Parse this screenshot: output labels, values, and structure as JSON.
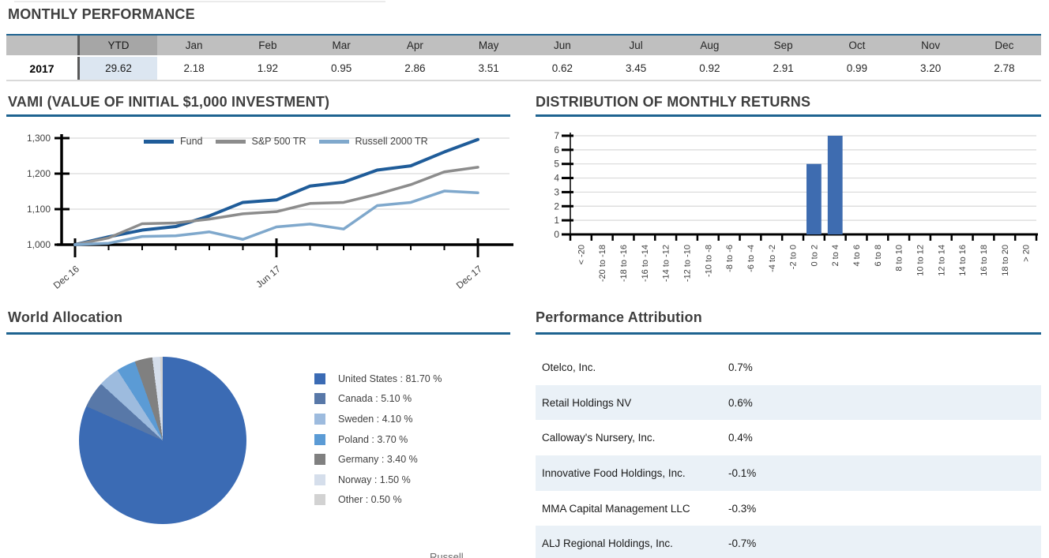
{
  "colors": {
    "accent_line": "#1E6390",
    "table_header_bg": "#BFBFBF",
    "ytd_header_bg": "#A6A6A6",
    "ytd_cell_bg": "#DCE6F1",
    "ytd_separator": "#595959",
    "alt_row_bg": "#EAF1F7",
    "gridline": "#D9D9D9",
    "axis": "#000000",
    "text_dark": "#3F3F3F",
    "text_body": "#1A1A1A"
  },
  "monthly_performance": {
    "title": "MONTHLY PERFORMANCE",
    "row_label": "2017",
    "columns": [
      "Jan",
      "Feb",
      "Mar",
      "Apr",
      "May",
      "Jun",
      "Jul",
      "Aug",
      "Sep",
      "Oct",
      "Nov",
      "Dec"
    ],
    "values": [
      "2.18",
      "1.92",
      "0.95",
      "2.86",
      "3.51",
      "0.62",
      "3.45",
      "0.92",
      "2.91",
      "0.99",
      "3.20",
      "2.78"
    ],
    "ytd_label": "YTD",
    "ytd_value": "29.62"
  },
  "vami": {
    "title": "VAMI (VALUE OF INITIAL $1,000 INVESTMENT)"
  },
  "distribution": {
    "title": "DISTRIBUTION OF MONTHLY RETURNS"
  },
  "world_allocation": {
    "title": "World Allocation"
  },
  "performance_attribution": {
    "title": "Performance Attribution",
    "rows": [
      {
        "name": "Otelco, Inc.",
        "value": "0.7%"
      },
      {
        "name": "Retail Holdings NV",
        "value": "0.6%"
      },
      {
        "name": "Calloway's Nursery, Inc.",
        "value": "0.4%"
      },
      {
        "name": "Innovative Food Holdings, Inc.",
        "value": "-0.1%"
      },
      {
        "name": "MMA Capital Management LLC",
        "value": "-0.3%"
      },
      {
        "name": "ALJ Regional Holdings, Inc.",
        "value": "-0.7%"
      }
    ]
  },
  "footer": {
    "partial_text": "Russell"
  },
  "chart_data": [
    {
      "type": "line",
      "title": "VAMI (VALUE OF INITIAL $1,000 INVESTMENT)",
      "x": [
        "Dec-16",
        "Jan-17",
        "Feb-17",
        "Mar-17",
        "Apr-17",
        "May-17",
        "Jun-17",
        "Jul-17",
        "Aug-17",
        "Sep-17",
        "Oct-17",
        "Nov-17",
        "Dec-17"
      ],
      "x_major": [
        {
          "index": 0,
          "label": "Dec 16"
        },
        {
          "index": 6,
          "label": "Jun 17"
        },
        {
          "index": 12,
          "label": "Dec 17"
        }
      ],
      "ylim": [
        1000,
        1300
      ],
      "yticks": [
        1000,
        1100,
        1200,
        1300
      ],
      "ytick_labels": [
        "1,000",
        "1,100",
        "1,200",
        "1,300"
      ],
      "grid": true,
      "legend_position": "top",
      "series": [
        {
          "name": "Fund",
          "color": "#1F5C99",
          "values": [
            1000,
            1022,
            1041,
            1051,
            1081,
            1119,
            1126,
            1165,
            1176,
            1210,
            1222,
            1261,
            1296
          ]
        },
        {
          "name": "S&P 500 TR",
          "color": "#8C8C8C",
          "values": [
            1000,
            1019,
            1059,
            1061,
            1072,
            1087,
            1093,
            1116,
            1119,
            1142,
            1169,
            1205,
            1218
          ]
        },
        {
          "name": "Russell 2000 TR",
          "color": "#7FA8CC",
          "values": [
            1000,
            1004,
            1023,
            1025,
            1036,
            1015,
            1050,
            1058,
            1044,
            1110,
            1119,
            1151,
            1146
          ]
        }
      ]
    },
    {
      "type": "bar",
      "title": "DISTRIBUTION OF MONTHLY RETURNS",
      "categories": [
        "< -20",
        "-20 to -18",
        "-18 to -16",
        "-16 to -14",
        "-14 to -12",
        "-12 to -10",
        "-10 to -8",
        "-8 to -6",
        "-6 to -4",
        "-4 to -2",
        "-2 to 0",
        "0 to 2",
        "2 to 4",
        "4 to 6",
        "6 to 8",
        "8 to 10",
        "10 to 12",
        "12 to 14",
        "14 to 16",
        "16 to 18",
        "18 to 20",
        "> 20"
      ],
      "values": [
        0,
        0,
        0,
        0,
        0,
        0,
        0,
        0,
        0,
        0,
        0,
        5,
        7,
        0,
        0,
        0,
        0,
        0,
        0,
        0,
        0,
        0
      ],
      "ylim": [
        0,
        7
      ],
      "yticks": [
        0,
        1,
        2,
        3,
        4,
        5,
        6,
        7
      ],
      "grid": true,
      "bar_color": "#3E6CB0"
    },
    {
      "type": "pie",
      "title": "World Allocation",
      "labels": [
        "United States",
        "Canada",
        "Sweden",
        "Poland",
        "Germany",
        "Norway",
        "Other"
      ],
      "values": [
        81.7,
        5.1,
        4.1,
        3.7,
        3.4,
        1.5,
        0.5
      ],
      "colors": [
        "#3B6BB4",
        "#5878A8",
        "#9DBBDE",
        "#5B9BD5",
        "#808080",
        "#D5DEEB",
        "#D2D2D2"
      ],
      "legend_labels": [
        "United States : 81.70 %",
        "Canada : 5.10 %",
        "Sweden : 4.10 %",
        "Poland : 3.70 %",
        "Germany : 3.40 %",
        "Norway : 1.50 %",
        "Other : 0.50 %"
      ],
      "legend_position": "right"
    }
  ]
}
